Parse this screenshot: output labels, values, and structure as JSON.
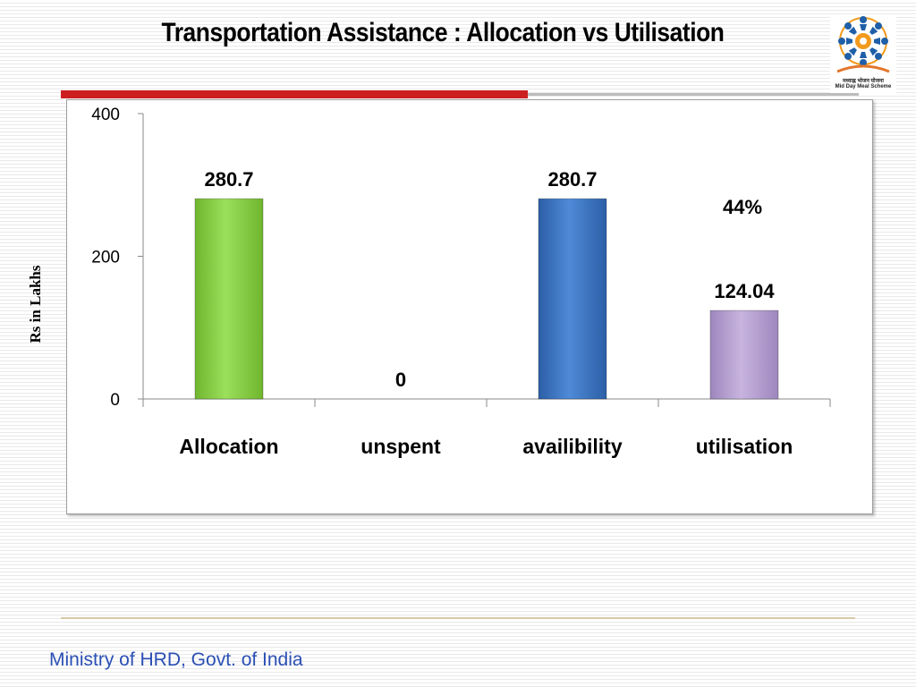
{
  "slide": {
    "title": "Transportation Assistance : Allocation vs Utilisation",
    "footer": "Ministry of HRD, Govt. of India",
    "logo": {
      "icon": "mid-day-meal-logo",
      "caption_hindi": "मध्याह्न भोजन योजना",
      "caption_english": "Mid Day Meal Scheme"
    }
  },
  "colors": {
    "title_rule": "#cc1f1f",
    "footer_text": "#2a4fb5"
  },
  "chart_data": {
    "type": "bar",
    "title": "",
    "xlabel": "",
    "ylabel": "Rs in Lakhs",
    "ylim": [
      0,
      400
    ],
    "yticks": [
      0,
      200,
      400
    ],
    "categories": [
      "Allocation",
      "unspent",
      "availibility",
      "utilisation"
    ],
    "values": [
      280.7,
      0,
      280.7,
      124.04
    ],
    "data_labels": [
      "280.7",
      "0",
      "280.7",
      "124.04"
    ],
    "bar_colors": [
      "#8cd34a",
      "#8cd34a",
      "#3d77c9",
      "#b8a2d1"
    ],
    "annotations": [
      {
        "category": "utilisation",
        "text": "44%"
      }
    ],
    "grid": false,
    "legend": "none"
  }
}
